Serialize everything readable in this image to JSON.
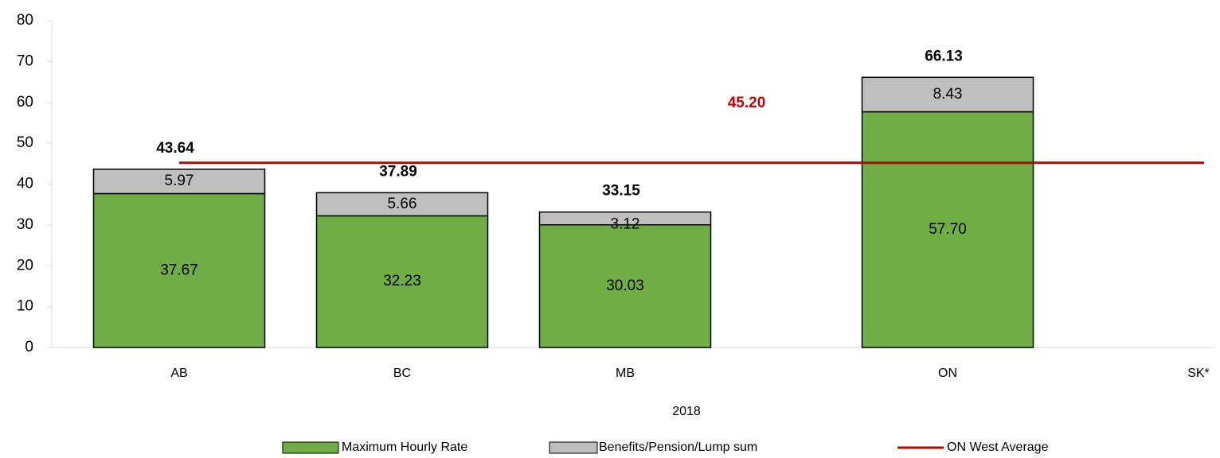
{
  "chart_data": {
    "type": "stacked-bar-line",
    "x_label": "2018",
    "categories": [
      "AB",
      "BC",
      "MB",
      "ON",
      "SK*"
    ],
    "series": [
      {
        "name": "Maximum Hourly Rate",
        "color": "#70ad47",
        "values": [
          37.67,
          32.23,
          30.03,
          57.7,
          null
        ],
        "value_labels": [
          "37.67",
          "32.23",
          "30.03",
          "57.70",
          null
        ]
      },
      {
        "name": "Benefits/Pension/Lump sum",
        "color": "#bfbfbf",
        "values": [
          5.97,
          5.66,
          3.12,
          8.43,
          null
        ]
      },
      {
        "name": "ON West Average",
        "color": "#c00000",
        "kind": "line",
        "values": [
          45.2,
          45.2,
          45.2,
          45.2,
          45.2
        ],
        "value_labels": [
          null,
          null,
          "45.20",
          null,
          null
        ]
      }
    ],
    "totals": [
      43.64,
      37.89,
      33.15,
      66.13,
      null
    ],
    "ylim": [
      0,
      80
    ],
    "yticks": [
      0,
      10,
      20,
      30,
      40,
      50,
      60,
      70,
      80
    ],
    "grid": false
  }
}
